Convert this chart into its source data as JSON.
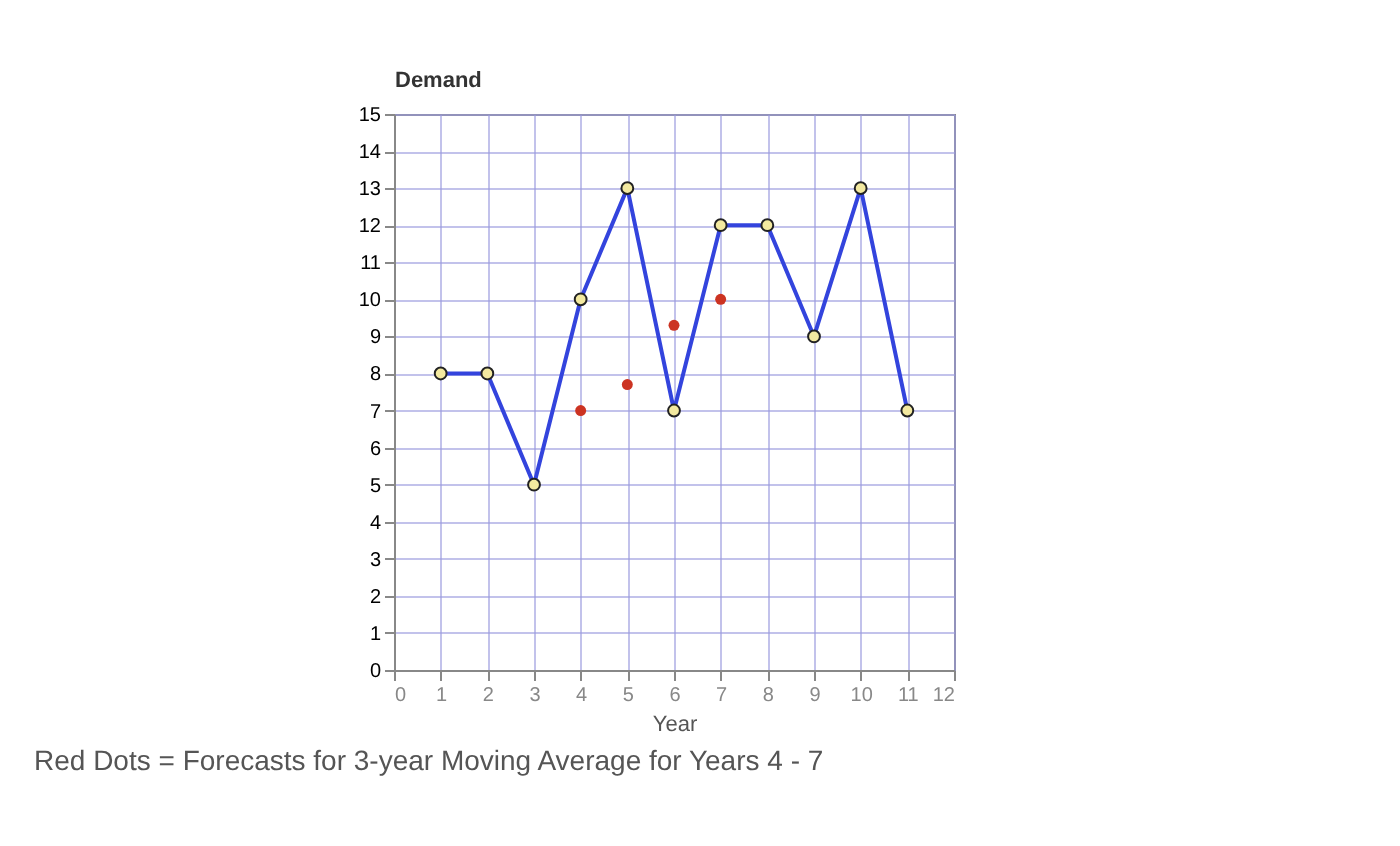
{
  "chart_data": {
    "type": "line",
    "ylabel": "Demand",
    "xlabel": "Year",
    "xlim": [
      0,
      12
    ],
    "ylim": [
      0,
      15
    ],
    "xticks": [
      0,
      1,
      2,
      3,
      4,
      5,
      6,
      7,
      8,
      9,
      10,
      11,
      12
    ],
    "yticks": [
      0,
      1,
      2,
      3,
      4,
      5,
      6,
      7,
      8,
      9,
      10,
      11,
      12,
      13,
      14,
      15
    ],
    "grid": true,
    "legend": false,
    "marker": "circle",
    "line_style": "solid",
    "series": [
      {
        "color": "#3344dd",
        "x": [
          1,
          2,
          3,
          4,
          5,
          6,
          7,
          8,
          9,
          10,
          11
        ],
        "values": [
          8,
          8,
          5,
          10,
          13,
          7,
          12,
          12,
          9,
          13,
          7
        ]
      },
      {
        "type": "scatter",
        "color": "#cc3322",
        "x": [
          4,
          5,
          6,
          7
        ],
        "values": [
          7,
          7.7,
          9.3,
          10
        ]
      }
    ],
    "annotations": [
      "Red Dots = Forecasts for 3-year Moving Average for Years 4 - 7"
    ]
  }
}
